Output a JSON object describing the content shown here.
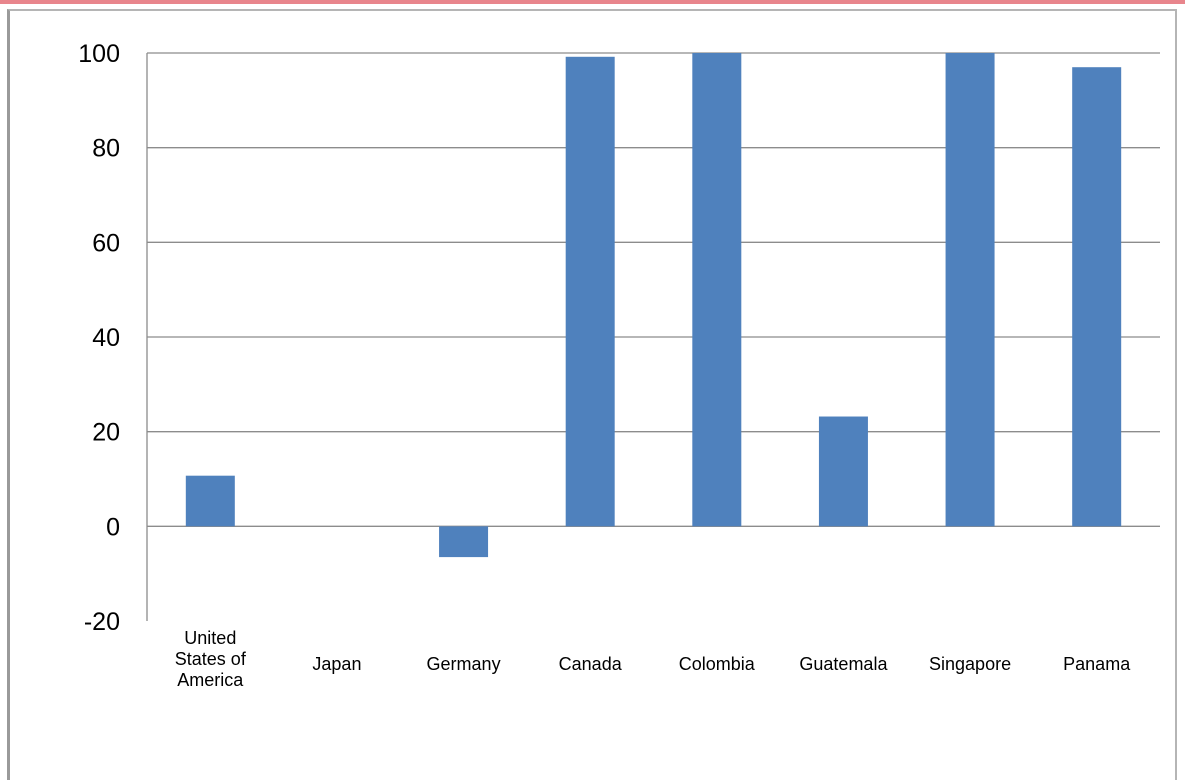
{
  "chart_data": {
    "type": "bar",
    "categories": [
      "United States of America",
      "Japan",
      "Germany",
      "Canada",
      "Colombia",
      "Guatemala",
      "Singapore",
      "Panama"
    ],
    "category_lines": [
      [
        "United",
        "States of",
        "America"
      ],
      [
        "Japan"
      ],
      [
        "Germany"
      ],
      [
        "Canada"
      ],
      [
        "Colombia"
      ],
      [
        "Guatemala"
      ],
      [
        "Singapore"
      ],
      [
        "Panama"
      ]
    ],
    "values": [
      10.7,
      0,
      -6.5,
      99.2,
      100,
      23.2,
      100,
      97
    ],
    "ylim": [
      -20,
      100
    ],
    "yticks": [
      -20,
      0,
      20,
      40,
      60,
      80,
      100
    ],
    "title": "",
    "xlabel": "",
    "ylabel": "",
    "grid": true,
    "legend": "none",
    "bar_color": "#4f81bd",
    "grid_color": "#8c8c8c"
  }
}
